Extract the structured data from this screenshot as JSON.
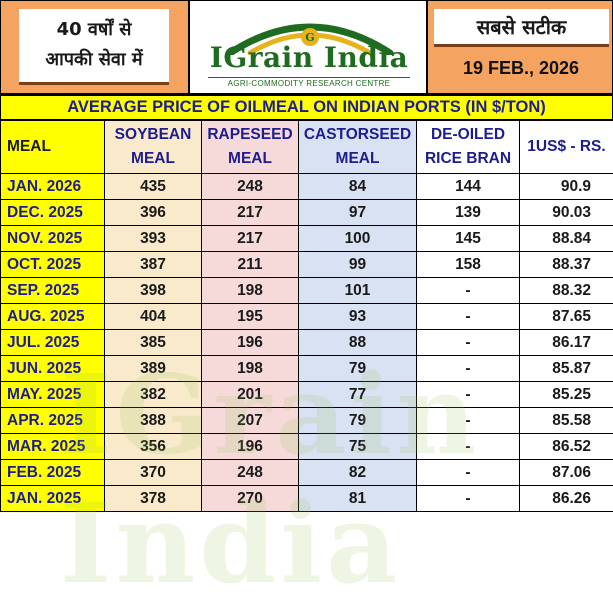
{
  "header": {
    "tagline_line1": "40 वर्षों से",
    "tagline_line2": "आपकी सेवा में",
    "brand_name": "IGrain India",
    "brand_subtitle": "AGRI-COMMODITY RESEARCH CENTRE",
    "slogan": "सबसे सटीक",
    "date": "19 FEB., 2026"
  },
  "title": "AVERAGE PRICE OF OILMEAL ON INDIAN PORTS (IN $/TON)",
  "table": {
    "headers": {
      "meal": "MEAL",
      "soybean_1": "SOYBEAN",
      "soybean_2": "MEAL",
      "rapeseed_1": "RAPESEED",
      "rapeseed_2": "MEAL",
      "castorseed_1": "CASTORSEED",
      "castorseed_2": "MEAL",
      "rice_1": "DE-OILED",
      "rice_2": "RICE BRAN",
      "usd": "1US$ - RS."
    },
    "rows": [
      {
        "month": "JAN. 2026",
        "soybean": "435",
        "rapeseed": "248",
        "castorseed": "84",
        "rice_bran": "144",
        "usd_rs": "90.9"
      },
      {
        "month": "DEC. 2025",
        "soybean": "396",
        "rapeseed": "217",
        "castorseed": "97",
        "rice_bran": "139",
        "usd_rs": "90.03"
      },
      {
        "month": "NOV. 2025",
        "soybean": "393",
        "rapeseed": "217",
        "castorseed": "100",
        "rice_bran": "145",
        "usd_rs": "88.84"
      },
      {
        "month": "OCT. 2025",
        "soybean": "387",
        "rapeseed": "211",
        "castorseed": "99",
        "rice_bran": "158",
        "usd_rs": "88.37"
      },
      {
        "month": "SEP. 2025",
        "soybean": "398",
        "rapeseed": "198",
        "castorseed": "101",
        "rice_bran": "-",
        "usd_rs": "88.32"
      },
      {
        "month": "AUG. 2025",
        "soybean": "404",
        "rapeseed": "195",
        "castorseed": "93",
        "rice_bran": "-",
        "usd_rs": "87.65"
      },
      {
        "month": "JUL. 2025",
        "soybean": "385",
        "rapeseed": "196",
        "castorseed": "88",
        "rice_bran": "-",
        "usd_rs": "86.17"
      },
      {
        "month": "JUN. 2025",
        "soybean": "389",
        "rapeseed": "198",
        "castorseed": "79",
        "rice_bran": "-",
        "usd_rs": "85.87"
      },
      {
        "month": "MAY. 2025",
        "soybean": "382",
        "rapeseed": "201",
        "castorseed": "77",
        "rice_bran": "-",
        "usd_rs": "85.25"
      },
      {
        "month": "APR. 2025",
        "soybean": "388",
        "rapeseed": "207",
        "castorseed": "79",
        "rice_bran": "-",
        "usd_rs": "85.58"
      },
      {
        "month": "MAR. 2025",
        "soybean": "356",
        "rapeseed": "196",
        "castorseed": "75",
        "rice_bran": "-",
        "usd_rs": "86.52"
      },
      {
        "month": "FEB. 2025",
        "soybean": "370",
        "rapeseed": "248",
        "castorseed": "82",
        "rice_bran": "-",
        "usd_rs": "87.06"
      },
      {
        "month": "JAN. 2025",
        "soybean": "378",
        "rapeseed": "270",
        "castorseed": "81",
        "rice_bran": "-",
        "usd_rs": "86.26"
      }
    ]
  },
  "colors": {
    "header_orange": "#f4a460",
    "title_yellow": "#ffff00",
    "title_text": "#1d1d8f",
    "brand_green": "#1f6b1f"
  },
  "watermark_text": "IGrain India"
}
